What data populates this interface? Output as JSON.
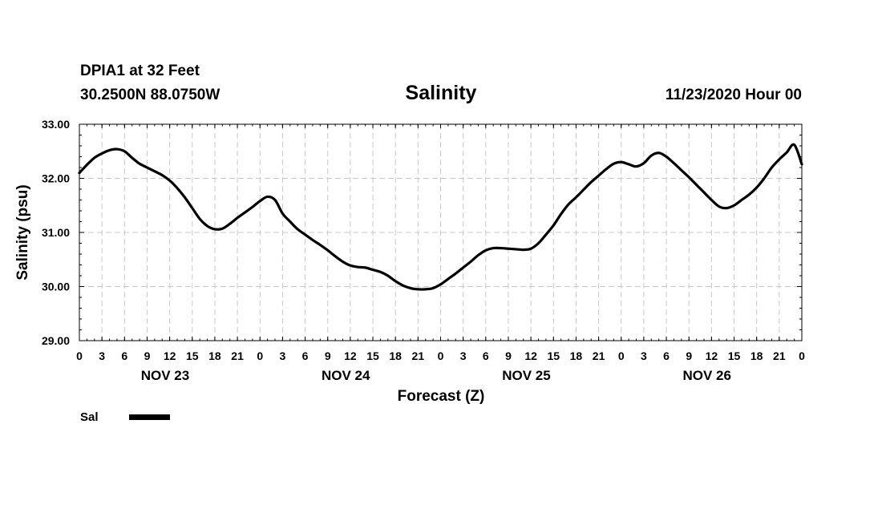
{
  "header": {
    "station": "DPIA1 at 32 Feet",
    "coordinates": "30.2500N 88.0750W",
    "title": "Salinity",
    "run_time": "11/23/2020 Hour 00"
  },
  "chart_data": {
    "type": "line",
    "title": "Salinity",
    "xlabel": "Forecast (Z)",
    "ylabel": "Salinity (psu)",
    "ylim": [
      29.0,
      33.0
    ],
    "y_ticks": [
      "29.00",
      "30.00",
      "31.00",
      "32.00",
      "33.00"
    ],
    "x_range_hours": [
      0,
      96
    ],
    "x_tick_labels": [
      "0",
      "3",
      "6",
      "9",
      "12",
      "15",
      "18",
      "21",
      "0",
      "3",
      "6",
      "9",
      "12",
      "15",
      "18",
      "21",
      "0",
      "3",
      "6",
      "9",
      "12",
      "15",
      "18",
      "21",
      "0",
      "3",
      "6",
      "9",
      "12",
      "15",
      "18",
      "21",
      "0"
    ],
    "day_labels": [
      "NOV 23",
      "NOV 24",
      "NOV 25",
      "NOV 26"
    ],
    "grid": true,
    "legend_position": "bottom-left",
    "series": [
      {
        "name": "Sal",
        "color": "#000000",
        "x": [
          0,
          1,
          2,
          3,
          4,
          5,
          6,
          7,
          8,
          9,
          10,
          11,
          12,
          13,
          14,
          15,
          16,
          17,
          18,
          19,
          20,
          21,
          22,
          23,
          24,
          25,
          26,
          27,
          28,
          29,
          30,
          31,
          32,
          33,
          34,
          35,
          36,
          37,
          38,
          39,
          40,
          41,
          42,
          43,
          44,
          45,
          46,
          47,
          48,
          49,
          50,
          51,
          52,
          53,
          54,
          55,
          56,
          57,
          58,
          59,
          60,
          61,
          62,
          63,
          64,
          65,
          66,
          67,
          68,
          69,
          70,
          71,
          72,
          73,
          74,
          75,
          76,
          77,
          78,
          79,
          80,
          81,
          82,
          83,
          84,
          85,
          86,
          87,
          88,
          89,
          90,
          91,
          92,
          93,
          94,
          95,
          96
        ],
        "values": [
          32.1,
          32.25,
          32.38,
          32.46,
          32.52,
          32.54,
          32.5,
          32.38,
          32.27,
          32.2,
          32.13,
          32.06,
          31.96,
          31.82,
          31.65,
          31.45,
          31.25,
          31.12,
          31.06,
          31.07,
          31.16,
          31.27,
          31.37,
          31.47,
          31.58,
          31.66,
          31.6,
          31.35,
          31.2,
          31.06,
          30.96,
          30.86,
          30.77,
          30.67,
          30.56,
          30.46,
          30.39,
          30.36,
          30.35,
          30.31,
          30.27,
          30.2,
          30.1,
          30.02,
          29.97,
          29.95,
          29.95,
          29.97,
          30.04,
          30.14,
          30.24,
          30.35,
          30.46,
          30.58,
          30.67,
          30.71,
          30.71,
          30.7,
          30.69,
          30.68,
          30.7,
          30.8,
          30.96,
          31.13,
          31.34,
          31.52,
          31.65,
          31.79,
          31.93,
          32.05,
          32.17,
          32.27,
          32.3,
          32.26,
          32.22,
          32.28,
          32.42,
          32.47,
          32.4,
          32.28,
          32.15,
          32.02,
          31.88,
          31.74,
          31.6,
          31.48,
          31.45,
          31.5,
          31.6,
          31.7,
          31.83,
          32.0,
          32.2,
          32.35,
          32.48,
          32.62,
          32.26
        ]
      }
    ]
  }
}
